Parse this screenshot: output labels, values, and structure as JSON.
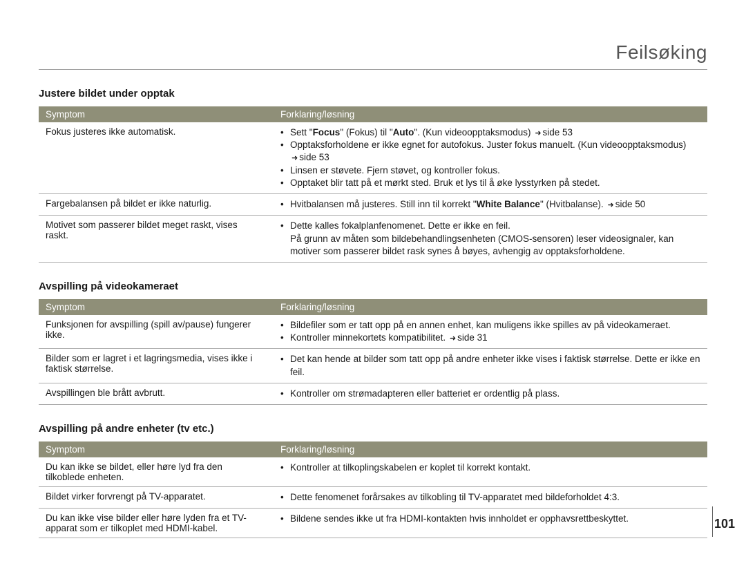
{
  "page_title": "Feilsøking",
  "page_number": "101",
  "table_header_colors": {
    "bg": "#8f8f78",
    "fg": "#ffffff"
  },
  "sections": [
    {
      "heading": "Justere bildet under opptak",
      "headers": [
        "Symptom",
        "Forklaring/løsning"
      ],
      "rows": [
        {
          "symptom": "Fokus justeres ikke automatisk.",
          "bullets": [
            "Sett \"<b>Focus</b>\" (Fokus) til \"<b>Auto</b>\". (Kun videoopptaksmodus) <span class='arrow'></span>side 53",
            "Opptaksforholdene er ikke egnet for autofokus. Juster fokus manuelt.  (Kun videoopptaksmodus) <span class='arrow'></span>side 53",
            "Linsen er støvete. Fjern støvet, og kontroller fokus.",
            "Opptaket blir tatt på et mørkt sted. Bruk et lys til å øke lysstyrken på stedet."
          ]
        },
        {
          "symptom": "Fargebalansen på bildet er ikke naturlig.",
          "bullets": [
            "Hvitbalansen må justeres. Still inn til korrekt \"<b>White Balance</b>\" (Hvitbalanse). <span class='arrow'></span>side 50"
          ]
        },
        {
          "symptom": "Motivet som passerer bildet meget raskt, vises raskt.",
          "bullets": [
            "Dette kalles fokalplanfenomenet. Dette er ikke en feil."
          ],
          "plain": "På grunn av måten som bildebehandlingsenheten (CMOS-sensoren) leser videosignaler, kan motiver som passerer bildet rask synes å bøyes, avhengig av opptaksforholdene."
        }
      ]
    },
    {
      "heading": "Avspilling på videokameraet",
      "headers": [
        "Symptom",
        "Forklaring/løsning"
      ],
      "rows": [
        {
          "symptom": "Funksjonen for avspilling (spill av/pause) fungerer ikke.",
          "bullets": [
            "Bildefiler som er tatt opp på en annen enhet, kan muligens ikke spilles av på videokameraet.",
            "Kontroller minnekortets kompatibilitet. <span class='arrow'></span>side 31"
          ]
        },
        {
          "symptom": "Bilder som er lagret i et lagringsmedia, vises ikke i faktisk størrelse.",
          "bullets": [
            "Det kan hende at bilder som tatt opp på andre enheter ikke vises i faktisk størrelse. Dette er ikke en feil."
          ]
        },
        {
          "symptom": "Avspillingen ble brått avbrutt.",
          "bullets": [
            "Kontroller om strømadapteren eller batteriet er ordentlig på plass."
          ]
        }
      ]
    },
    {
      "heading": "Avspilling på andre enheter (tv etc.)",
      "headers": [
        "Symptom",
        "Forklaring/løsning"
      ],
      "rows": [
        {
          "symptom": "Du kan ikke se bildet, eller høre lyd fra den tilkoblede enheten.",
          "bullets": [
            "Kontroller at tilkoplingskabelen er koplet til korrekt kontakt."
          ]
        },
        {
          "symptom": "Bildet virker forvrengt på TV-apparatet.",
          "bullets": [
            "Dette fenomenet forårsakes av tilkobling til TV-apparatet med bildeforholdet 4:3."
          ]
        },
        {
          "symptom": "Du kan ikke vise bilder eller høre lyden fra et TV-apparat som er tilkoplet med HDMI-kabel.",
          "bullets": [
            "Bildene sendes ikke ut fra HDMI-kontakten hvis innholdet er opphavsrettbeskyttet."
          ]
        }
      ]
    }
  ]
}
